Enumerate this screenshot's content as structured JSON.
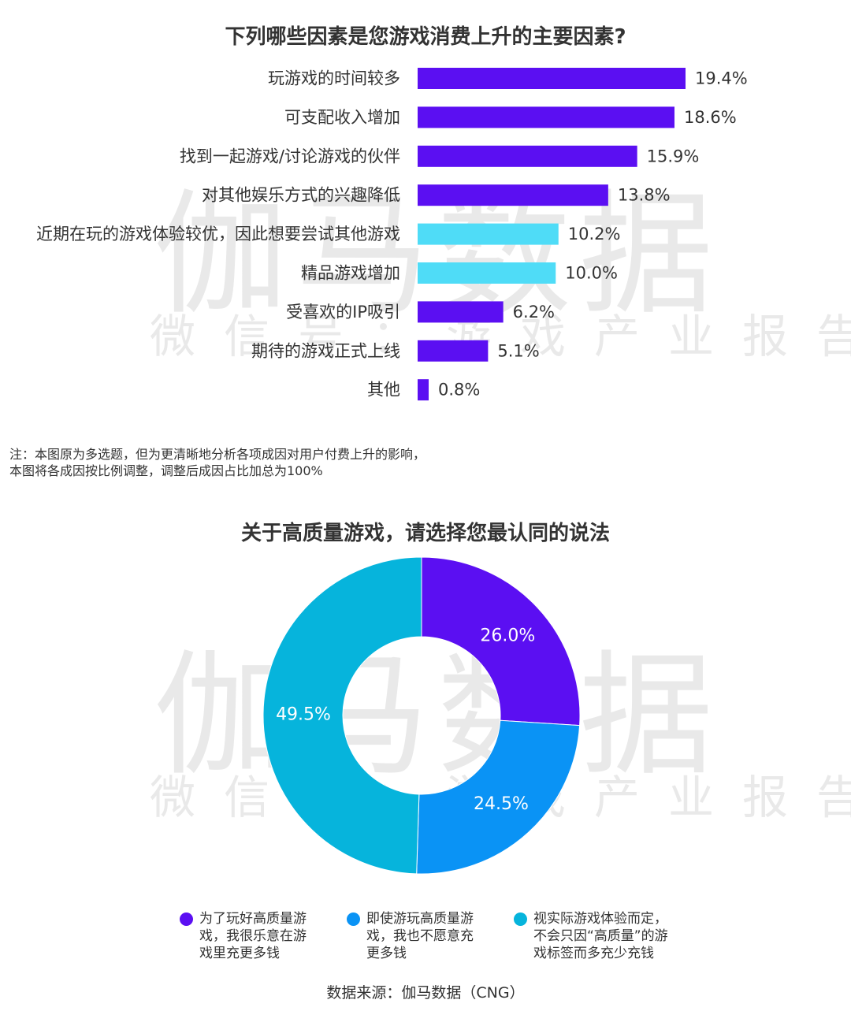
{
  "watermark": {
    "main": "伽马数据",
    "sub": "微信号：游戏产业报告"
  },
  "bar_chart": {
    "title": "下列哪些因素是您游戏消费上升的主要因素?",
    "note_lines": [
      "注：本图原为多选题，但为更清晰地分析各项成因对用户付费上升的影响，",
      "本图将各成因按比例调整，调整后成因占比加总为100%"
    ]
  },
  "donut_chart": {
    "title": "关于高质量游戏，请选择您最认同的说法",
    "legend": [
      {
        "lines": [
          "为了玩好高质量游",
          "戏，我很乐意在游",
          "戏里充更多钱"
        ]
      },
      {
        "lines": [
          "即使游玩高质量游",
          "戏，我也不愿意充",
          "更多钱"
        ]
      },
      {
        "lines": [
          "视实际游戏体验而定，",
          "不会只因“高质量”的游",
          "戏标签而多充少充钱"
        ]
      }
    ]
  },
  "source": "数据来源：伽马数据（CNG）",
  "colors": {
    "purple": "#5b0ff2",
    "cyan": "#4fdcf7",
    "blue": "#0a93f5",
    "teal": "#06b4dc"
  },
  "chart_data": [
    {
      "type": "bar",
      "orientation": "horizontal",
      "title": "下列哪些因素是您游戏消费上升的主要因素?",
      "categories": [
        "玩游戏的时间较多",
        "可支配收入增加",
        "找到一起游戏/讨论游戏的伙伴",
        "对其他娱乐方式的兴趣降低",
        "近期在玩的游戏体验较优，因此想要尝试其他游戏",
        "精品游戏增加",
        "受喜欢的IP吸引",
        "期待的游戏正式上线",
        "其他"
      ],
      "values": [
        19.4,
        18.6,
        15.9,
        13.8,
        10.2,
        10.0,
        6.2,
        5.1,
        0.8
      ],
      "labels": [
        "19.4%",
        "18.6%",
        "15.9%",
        "13.8%",
        "10.2%",
        "10.0%",
        "6.2%",
        "5.1%",
        "0.8%"
      ],
      "bar_colors": [
        "#5b0ff2",
        "#5b0ff2",
        "#5b0ff2",
        "#5b0ff2",
        "#4fdcf7",
        "#4fdcf7",
        "#5b0ff2",
        "#5b0ff2",
        "#5b0ff2"
      ],
      "grid": false
    },
    {
      "type": "pie",
      "donut": true,
      "title": "关于高质量游戏，请选择您最认同的说法",
      "values": [
        26.0,
        24.5,
        49.5
      ],
      "labels": [
        "26.0%",
        "24.5%",
        "49.5%"
      ],
      "slice_colors": [
        "#5b0ff2",
        "#0a93f5",
        "#06b4dc"
      ],
      "legend_position": "bottom"
    }
  ]
}
